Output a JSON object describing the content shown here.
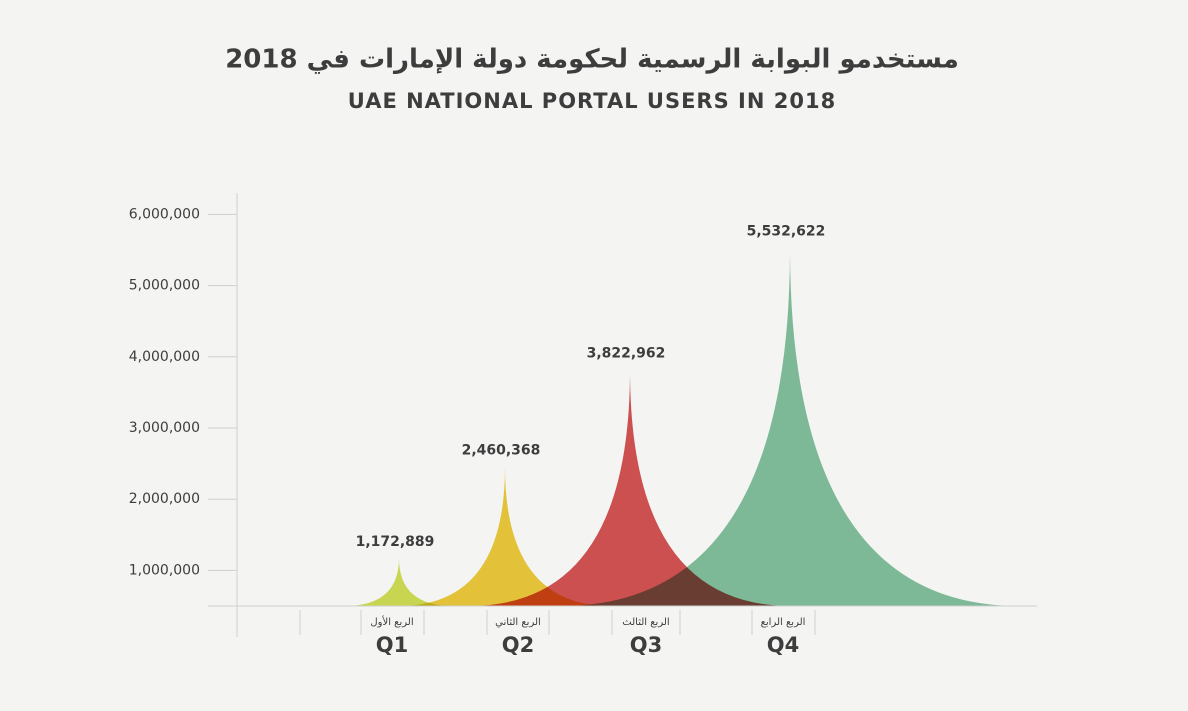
{
  "chart_data": {
    "type": "area",
    "title": "مستخدمو البوابة الرسمية لحكومة دولة الإمارات في 2018",
    "subtitle": "UAE NATIONAL PORTAL USERS IN 2018",
    "categories": [
      "Q1",
      "Q2",
      "Q3",
      "Q4"
    ],
    "category_sublabels": [
      "الربع الأول",
      "الربع الثاني",
      "الربع الثالث",
      "الربع الرابع"
    ],
    "values": [
      1172889,
      2460368,
      3822962,
      5532622
    ],
    "value_labels": [
      "1,172,889",
      "2,460,368",
      "3,822,962",
      "5,532,622"
    ],
    "colors": [
      "#c9da3c",
      "#ecc321",
      "#d23b3c",
      "#72b88f"
    ],
    "ylim": [
      500000,
      6300000
    ],
    "yticks": [
      {
        "value": 1000000,
        "label": "1,000,000"
      },
      {
        "value": 2000000,
        "label": "2,000,000"
      },
      {
        "value": 3000000,
        "label": "3,000,000"
      },
      {
        "value": 4000000,
        "label": "4,000,000"
      },
      {
        "value": 5000000,
        "label": "5,000,000"
      },
      {
        "value": 6000000,
        "label": "6,000,000"
      }
    ],
    "grid": false
  }
}
